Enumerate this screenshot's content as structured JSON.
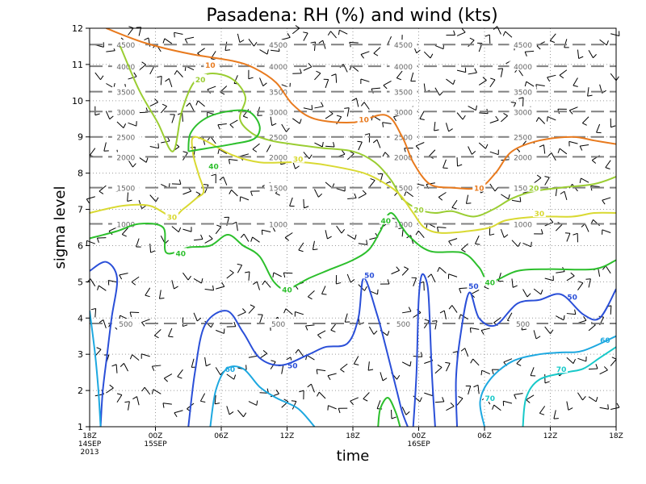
{
  "chart_data": {
    "type": "contour",
    "title": "Pasadena: RH (%) and wind (kts)",
    "xlabel": "time",
    "ylabel": "sigma level",
    "ylim": [
      1,
      12
    ],
    "xlim_hours": [
      0,
      48
    ],
    "y_ticks": [
      "1",
      "2",
      "3",
      "4",
      "5",
      "6",
      "7",
      "8",
      "9",
      "10",
      "11",
      "12"
    ],
    "x_ticks": [
      {
        "h": 0,
        "lines": [
          "18Z",
          "14SEP",
          "2013"
        ]
      },
      {
        "h": 6,
        "lines": [
          "00Z",
          "15SEP"
        ]
      },
      {
        "h": 12,
        "lines": [
          "06Z"
        ]
      },
      {
        "h": 18,
        "lines": [
          "12Z"
        ]
      },
      {
        "h": 24,
        "lines": [
          "18Z"
        ]
      },
      {
        "h": 30,
        "lines": [
          "00Z",
          "16SEP"
        ]
      },
      {
        "h": 36,
        "lines": [
          "06Z"
        ]
      },
      {
        "h": 42,
        "lines": [
          "12Z"
        ]
      },
      {
        "h": 48,
        "lines": [
          "18Z"
        ]
      }
    ],
    "height_contours": [
      {
        "value": 500,
        "label": "500",
        "y": 3.85
      },
      {
        "value": 1000,
        "label": "1000",
        "y": 6.6
      },
      {
        "value": 1500,
        "label": "1500",
        "y": 7.6
      },
      {
        "value": 2000,
        "label": "2000",
        "y": 8.45
      },
      {
        "value": 2500,
        "label": "2500",
        "y": 9.0
      },
      {
        "value": 3000,
        "label": "3000",
        "y": 9.7
      },
      {
        "value": 3500,
        "label": "3500",
        "y": 10.25
      },
      {
        "value": 4000,
        "label": "4000",
        "y": 10.95
      },
      {
        "value": 4500,
        "label": "4500",
        "y": 11.55
      }
    ],
    "height_label_x": [
      3.3,
      17.2,
      28.6,
      39.5
    ],
    "rh_series": [
      {
        "name": "RH 10",
        "label": "10",
        "color": "#e87a1e",
        "labels": [
          [
            11.0,
            11.0
          ],
          [
            25.0,
            9.5
          ],
          [
            35.5,
            7.6
          ]
        ],
        "points": [
          [
            1.5,
            12
          ],
          [
            5,
            11.6
          ],
          [
            9,
            11.3
          ],
          [
            13,
            11.1
          ],
          [
            15,
            10.9
          ],
          [
            17,
            10.5
          ],
          [
            18.5,
            9.9
          ],
          [
            20.5,
            9.5
          ],
          [
            24,
            9.4
          ],
          [
            27,
            9.6
          ],
          [
            28.5,
            9.0
          ],
          [
            29.5,
            8.3
          ],
          [
            31,
            7.7
          ],
          [
            33,
            7.6
          ],
          [
            35.5,
            7.6
          ],
          [
            37,
            8.0
          ],
          [
            38.5,
            8.6
          ],
          [
            41,
            8.9
          ],
          [
            44,
            9.0
          ],
          [
            46,
            8.9
          ],
          [
            48,
            8.8
          ]
        ]
      },
      {
        "name": "RH 20",
        "label": "20",
        "color": "#9acd32",
        "labels": [
          [
            10.1,
            10.6
          ],
          [
            30.0,
            7.0
          ],
          [
            40.5,
            7.6
          ]
        ],
        "points": [
          [
            2.8,
            11.5
          ],
          [
            4.5,
            10.3
          ],
          [
            6.2,
            9.4
          ],
          [
            7.6,
            8.6
          ],
          [
            8.4,
            9.7
          ],
          [
            9.5,
            10.5
          ],
          [
            11,
            10.75
          ],
          [
            13,
            10.6
          ],
          [
            14.2,
            10.1
          ],
          [
            13.7,
            9.5
          ],
          [
            14.8,
            9.1
          ],
          [
            16.5,
            8.9
          ],
          [
            18.5,
            8.8
          ],
          [
            21,
            8.7
          ],
          [
            24,
            8.6
          ],
          [
            26,
            8.3
          ],
          [
            27.5,
            7.8
          ],
          [
            28.5,
            7.3
          ],
          [
            30,
            7.0
          ],
          [
            31.5,
            6.9
          ],
          [
            33,
            6.95
          ],
          [
            35,
            6.8
          ],
          [
            36.8,
            7.0
          ],
          [
            38.5,
            7.3
          ],
          [
            40.5,
            7.5
          ],
          [
            43,
            7.6
          ],
          [
            46,
            7.7
          ],
          [
            48,
            7.9
          ]
        ]
      },
      {
        "name": "RH 30",
        "label": "30",
        "color": "#d9d932",
        "labels": [
          [
            7.5,
            6.8
          ],
          [
            19.0,
            8.4
          ],
          [
            41.0,
            6.9
          ]
        ],
        "points": [
          [
            0,
            6.9
          ],
          [
            3,
            7.1
          ],
          [
            5.5,
            7.1
          ],
          [
            7.5,
            6.8
          ],
          [
            8.5,
            7.0
          ],
          [
            9.7,
            7.3
          ],
          [
            10.4,
            7.5
          ],
          [
            9.9,
            8.0
          ],
          [
            9.4,
            8.6
          ],
          [
            9.7,
            9.0
          ],
          [
            13,
            8.5
          ],
          [
            15.5,
            8.3
          ],
          [
            18,
            8.3
          ],
          [
            19.5,
            8.3
          ],
          [
            22,
            8.2
          ],
          [
            25,
            8.0
          ],
          [
            27,
            7.7
          ],
          [
            28.3,
            7.4
          ],
          [
            29.5,
            6.9
          ],
          [
            30.5,
            6.5
          ],
          [
            32,
            6.35
          ],
          [
            34.5,
            6.4
          ],
          [
            36.5,
            6.5
          ],
          [
            38,
            6.7
          ],
          [
            41,
            6.8
          ],
          [
            44,
            6.8
          ],
          [
            46,
            6.9
          ],
          [
            48,
            6.9
          ]
        ]
      },
      {
        "name": "RH 40 (left)",
        "label": "40",
        "color": "#2cbf2c",
        "labels": [
          [
            8.3,
            5.8
          ],
          [
            18.0,
            4.8
          ],
          [
            11.3,
            8.2
          ],
          [
            27.0,
            6.7
          ],
          [
            36.5,
            5.0
          ]
        ],
        "points": [
          [
            0,
            6.2
          ],
          [
            2.5,
            6.4
          ],
          [
            4.5,
            6.6
          ],
          [
            6.7,
            6.5
          ],
          [
            7,
            5.8
          ],
          [
            9,
            5.95
          ],
          [
            11,
            6.0
          ],
          [
            12.6,
            6.3
          ],
          [
            14,
            6.0
          ],
          [
            15.5,
            5.7
          ],
          [
            16.8,
            5.0
          ],
          [
            18,
            4.8
          ],
          [
            20,
            5.1
          ],
          [
            22,
            5.35
          ],
          [
            24,
            5.6
          ],
          [
            25.5,
            5.9
          ],
          [
            26.5,
            6.4
          ],
          [
            27.5,
            6.9
          ],
          [
            29,
            6.3
          ],
          [
            31,
            5.85
          ],
          [
            34,
            5.8
          ],
          [
            35.5,
            5.4
          ],
          [
            36.5,
            5.0
          ],
          [
            39,
            5.3
          ],
          [
            42,
            5.35
          ],
          [
            46,
            5.35
          ],
          [
            48,
            5.6
          ]
        ]
      },
      {
        "name": "RH 40 (island)",
        "label": "",
        "color": "#2cbf2c",
        "labels": [],
        "points": [
          [
            9,
            8.6
          ],
          [
            11,
            8.7
          ],
          [
            13,
            8.8
          ],
          [
            15,
            8.95
          ],
          [
            15.5,
            9.3
          ],
          [
            14.5,
            9.7
          ],
          [
            12.5,
            9.7
          ],
          [
            10.5,
            9.5
          ],
          [
            9.2,
            9.1
          ],
          [
            9,
            8.6
          ]
        ]
      },
      {
        "name": "RH 40 (bottom)",
        "label": "",
        "color": "#2cbf2c",
        "labels": [],
        "points": [
          [
            26.3,
            1
          ],
          [
            26.5,
            1.5
          ],
          [
            27.2,
            1.8
          ],
          [
            27.9,
            1.4
          ],
          [
            28.3,
            1
          ]
        ]
      },
      {
        "name": "RH 50 (left)",
        "label": "50",
        "color": "#2a4fd8",
        "labels": [
          [
            18.5,
            2.7
          ]
        ],
        "points": [
          [
            0,
            5.3
          ],
          [
            1.5,
            5.55
          ],
          [
            2.5,
            5.1
          ],
          [
            2.0,
            4.0
          ],
          [
            1.6,
            3.0
          ],
          [
            1.2,
            2.0
          ],
          [
            1.0,
            1.0
          ]
        ]
      },
      {
        "name": "RH 50 (right)",
        "label": "50",
        "color": "#2a4fd8",
        "labels": [
          [
            25.5,
            5.2
          ],
          [
            35.0,
            4.9
          ],
          [
            44.0,
            4.6
          ]
        ],
        "points": [
          [
            9.0,
            1
          ],
          [
            9.6,
            2.5
          ],
          [
            10.5,
            3.8
          ],
          [
            12.5,
            4.2
          ],
          [
            14,
            3.6
          ],
          [
            15.5,
            2.9
          ],
          [
            17.5,
            2.7
          ],
          [
            20,
            3.0
          ],
          [
            21.5,
            3.2
          ],
          [
            23.5,
            3.3
          ],
          [
            24.5,
            4.0
          ],
          [
            25,
            5.1
          ],
          [
            26.2,
            4.1
          ],
          [
            27,
            3.2
          ],
          [
            28,
            2.0
          ],
          [
            28.5,
            1.4
          ],
          [
            29,
            1.0
          ]
        ]
      },
      {
        "name": "RH 50 (middle)",
        "label": "",
        "color": "#2a4fd8",
        "labels": [],
        "points": [
          [
            29.5,
            1
          ],
          [
            29.8,
            2.5
          ],
          [
            30.0,
            4.5
          ],
          [
            30.3,
            5.2
          ],
          [
            30.8,
            4.9
          ],
          [
            31.0,
            4.0
          ],
          [
            31.2,
            2.5
          ],
          [
            31.5,
            1.0
          ]
        ]
      },
      {
        "name": "RH 50 (far right)",
        "label": "",
        "color": "#2a4fd8",
        "labels": [],
        "points": [
          [
            33.5,
            1
          ],
          [
            33.4,
            2.3
          ],
          [
            33.8,
            3.5
          ],
          [
            34.6,
            4.7
          ],
          [
            35.5,
            4.0
          ],
          [
            37,
            3.8
          ],
          [
            39,
            4.4
          ],
          [
            41,
            4.5
          ],
          [
            43,
            4.65
          ],
          [
            45,
            4.1
          ],
          [
            46.5,
            4.0
          ],
          [
            48,
            4.8
          ]
        ]
      },
      {
        "name": "RH 60 (left)",
        "label": "60",
        "color": "#1da8e0",
        "labels": [
          [
            12.8,
            2.6
          ],
          [
            47.0,
            3.4
          ]
        ],
        "points": [
          [
            0,
            4.2
          ],
          [
            0.5,
            3.0
          ],
          [
            0.8,
            2.0
          ],
          [
            1.0,
            1.0
          ]
        ]
      },
      {
        "name": "RH 60 (middle)",
        "label": "",
        "color": "#1da8e0",
        "labels": [],
        "points": [
          [
            11,
            1
          ],
          [
            11.5,
            2.0
          ],
          [
            12.5,
            2.6
          ],
          [
            14,
            2.6
          ],
          [
            15.5,
            2.1
          ],
          [
            17,
            1.8
          ],
          [
            19,
            1.5
          ],
          [
            20.5,
            1.0
          ]
        ]
      },
      {
        "name": "RH 60 (right)",
        "label": "",
        "color": "#1da8e0",
        "labels": [],
        "points": [
          [
            36,
            1
          ],
          [
            35.6,
            1.7
          ],
          [
            36.5,
            2.3
          ],
          [
            38.5,
            2.8
          ],
          [
            41,
            3.0
          ],
          [
            43,
            3.05
          ],
          [
            45,
            3.1
          ],
          [
            48,
            3.5
          ]
        ]
      },
      {
        "name": "RH 70",
        "label": "70",
        "color": "#17c9c9",
        "labels": [
          [
            36.5,
            1.8
          ],
          [
            43.0,
            2.6
          ]
        ],
        "points": [
          [
            39.5,
            1
          ],
          [
            39.8,
            1.8
          ],
          [
            41,
            2.3
          ],
          [
            43.5,
            2.5
          ],
          [
            45,
            2.6
          ],
          [
            46.5,
            2.9
          ],
          [
            48,
            3.2
          ]
        ]
      }
    ],
    "wind_levels": [
      1.7,
      2.7,
      3.9,
      5.0,
      6.3,
      7.5,
      8.6,
      9.6,
      10.6,
      11.6
    ],
    "wind_x_step_hours": 1
  }
}
